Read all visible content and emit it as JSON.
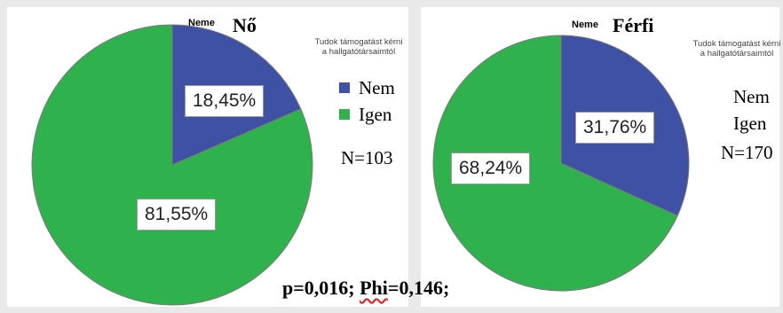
{
  "colors": {
    "nem": "#3f51a5",
    "igen": "#2fb24e"
  },
  "chart_data": [
    {
      "type": "pie",
      "title": "Nő",
      "variable_label": "Neme",
      "legend_title": "Tudok támogatást kérni a hallgatótársaimtól",
      "legend_placement": "right",
      "slices": [
        {
          "label": "Nem",
          "value": 18.45,
          "display": "18,45%",
          "color": "#3f51a5"
        },
        {
          "label": "Igen",
          "value": 81.55,
          "display": "81,55%",
          "color": "#2fb24e"
        }
      ],
      "n_label": "N=103"
    },
    {
      "type": "pie",
      "title": "Férfi",
      "variable_label": "Neme",
      "legend_title": "Tudok támogatást kérni a hallgatótársaimtól",
      "legend_placement": "right",
      "slices": [
        {
          "label": "Nem",
          "value": 31.76,
          "display": "31,76%",
          "color": "#3f51a5"
        },
        {
          "label": "Igen",
          "value": 68.24,
          "display": "68,24%",
          "color": "#2fb24e"
        }
      ],
      "n_label": "N=170"
    }
  ],
  "stat": {
    "p_part": "p=0,016; ",
    "phi_word": "Phi",
    "phi_value": "=0,146;"
  }
}
